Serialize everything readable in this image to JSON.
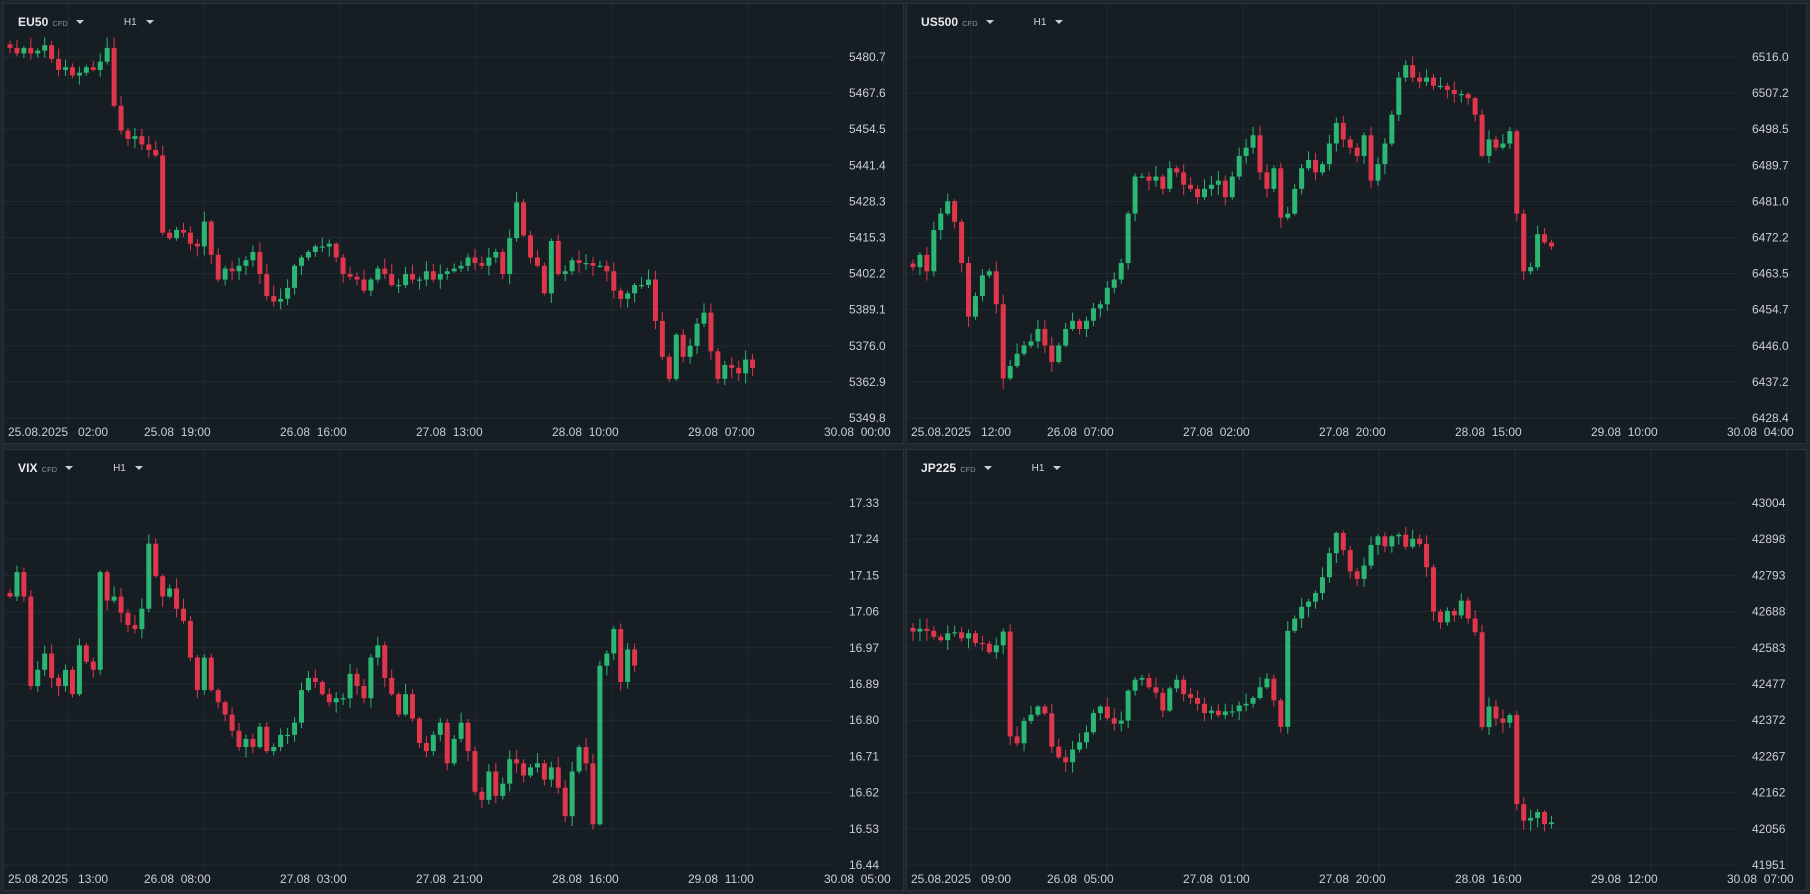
{
  "colors": {
    "up": "#2bb673",
    "down": "#e0364c",
    "grid": "#222b33",
    "bg": "#161d23"
  },
  "ui": {
    "timeframe_caret_icon": "chevron-down-icon",
    "symbol_caret_icon": "chevron-down-icon"
  },
  "chart_data": [
    {
      "type": "candlestick",
      "symbol": "EU50",
      "instrument_type": "CFD",
      "timeframe": "H1",
      "y_labels": [
        "5480.7",
        "5467.6",
        "5454.5",
        "5441.4",
        "5428.3",
        "5415.3",
        "5402.2",
        "5389.1",
        "5376.0",
        "5362.9",
        "5349.8"
      ],
      "ylim": [
        5349.8,
        5480.7
      ],
      "x_labels": [
        "25.08.2025   02:00",
        "25.08  19:00",
        "26.08  16:00",
        "27.08  13:00",
        "28.08  10:00",
        "29.08  07:00",
        "30.08  00:00"
      ],
      "closes": [
        5484,
        5482,
        5484,
        5482,
        5483,
        5485,
        5480,
        5476,
        5477,
        5474,
        5475,
        5477,
        5476,
        5479,
        5484,
        5463,
        5454,
        5451,
        5452,
        5449,
        5447,
        5445,
        5417,
        5415,
        5418,
        5417,
        5413,
        5412,
        5421,
        5409,
        5400,
        5404,
        5403,
        5405,
        5407,
        5410,
        5402,
        5394,
        5392,
        5393,
        5397,
        5405,
        5408,
        5410,
        5412,
        5412,
        5413,
        5408,
        5402,
        5401,
        5400,
        5396,
        5400,
        5404,
        5402,
        5398,
        5398,
        5402,
        5400,
        5400,
        5403,
        5400,
        5402,
        5403,
        5404,
        5405,
        5408,
        5406,
        5405,
        5408,
        5410,
        5402,
        5415,
        5428,
        5416,
        5408,
        5405,
        5395,
        5414,
        5402,
        5403,
        5407,
        5406,
        5406,
        5405,
        5405,
        5403,
        5396,
        5393,
        5395,
        5398,
        5398,
        5400,
        5385,
        5372,
        5364,
        5380,
        5372,
        5376,
        5384,
        5388,
        5374,
        5364,
        5369,
        5368,
        5366,
        5371,
        5368
      ]
    },
    {
      "type": "candlestick",
      "symbol": "US500",
      "instrument_type": "CFD",
      "timeframe": "H1",
      "y_labels": [
        "6516.0",
        "6507.2",
        "6498.5",
        "6489.7",
        "6481.0",
        "6472.2",
        "6463.5",
        "6454.7",
        "6446.0",
        "6437.2",
        "6428.4"
      ],
      "ylim": [
        6428.4,
        6516.0
      ],
      "x_labels": [
        "25.08.2025   12:00",
        "26.08  07:00",
        "27.08  02:00",
        "27.08  20:00",
        "28.08  15:00",
        "29.08  10:00",
        "30.08  04:00"
      ],
      "closes": [
        6465,
        6468,
        6464,
        6474,
        6478,
        6481,
        6476,
        6466,
        6453,
        6458,
        6463,
        6464,
        6456,
        6438,
        6441,
        6444,
        6446,
        6447,
        6450,
        6446,
        6442,
        6446,
        6450,
        6452,
        6450,
        6452,
        6455,
        6456,
        6460,
        6462,
        6466,
        6478,
        6487,
        6487,
        6486,
        6487,
        6484,
        6489,
        6488,
        6485,
        6484,
        6482,
        6484,
        6485,
        6486,
        6482,
        6487,
        6492,
        6494,
        6497,
        6488,
        6484,
        6489,
        6477,
        6478,
        6484,
        6489,
        6491,
        6488,
        6490,
        6495,
        6500,
        6496,
        6494,
        6492,
        6497,
        6486,
        6490,
        6495,
        6502,
        6511,
        6514,
        6511,
        6510,
        6511,
        6509,
        6509,
        6508,
        6507,
        6507,
        6506,
        6502,
        6492,
        6496,
        6494,
        6495,
        6498,
        6478,
        6464,
        6465,
        6473,
        6471,
        6470
      ]
    },
    {
      "type": "candlestick",
      "symbol": "VIX",
      "instrument_type": "CFD",
      "timeframe": "H1",
      "y_labels": [
        "17.33",
        "17.24",
        "17.15",
        "17.06",
        "16.97",
        "16.89",
        "16.80",
        "16.71",
        "16.62",
        "16.53",
        "16.44"
      ],
      "ylim": [
        16.44,
        17.33
      ],
      "x_labels": [
        "25.08.2025   13:00",
        "26.08  08:00",
        "27.08  03:00",
        "27.08  21:00",
        "28.08  16:00",
        "29.08  11:00",
        "30.08  05:00"
      ],
      "closes": [
        17.1,
        17.16,
        17.1,
        16.88,
        16.92,
        16.96,
        16.9,
        16.88,
        16.92,
        16.86,
        16.98,
        16.94,
        16.92,
        17.16,
        17.09,
        17.1,
        17.06,
        17.03,
        17.02,
        17.07,
        17.23,
        17.15,
        17.1,
        17.12,
        17.07,
        17.04,
        16.95,
        16.87,
        16.95,
        16.87,
        16.84,
        16.81,
        16.77,
        16.73,
        16.75,
        16.73,
        16.78,
        16.72,
        16.73,
        16.76,
        16.76,
        16.79,
        16.87,
        16.9,
        16.89,
        16.86,
        16.84,
        16.85,
        16.85,
        16.91,
        16.88,
        16.85,
        16.95,
        16.98,
        16.9,
        16.86,
        16.81,
        16.86,
        16.8,
        16.74,
        16.72,
        16.76,
        16.79,
        16.69,
        16.75,
        16.79,
        16.72,
        16.62,
        16.6,
        16.67,
        16.61,
        16.64,
        16.7,
        16.69,
        16.66,
        16.68,
        16.69,
        16.65,
        16.68,
        16.63,
        16.56,
        16.67,
        16.73,
        16.69,
        16.54,
        16.93,
        16.96,
        17.02,
        16.89,
        16.97,
        16.93
      ]
    },
    {
      "type": "candlestick",
      "symbol": "JP225",
      "instrument_type": "CFD",
      "timeframe": "H1",
      "y_labels": [
        "43004",
        "42898",
        "42793",
        "42688",
        "42583",
        "42477",
        "42372",
        "42267",
        "42162",
        "42056",
        "41951"
      ],
      "ylim": [
        41951,
        43004
      ],
      "x_labels": [
        "25.08.2025   09:00",
        "26.08  05:00",
        "27.08  01:00",
        "27.08  20:00",
        "28.08  16:00",
        "29.08  12:00",
        "30.08  07:00"
      ],
      "closes": [
        42630,
        42638,
        42632,
        42615,
        42605,
        42625,
        42628,
        42610,
        42625,
        42597,
        42595,
        42570,
        42590,
        42630,
        42325,
        42305,
        42370,
        42388,
        42412,
        42392,
        42295,
        42264,
        42250,
        42287,
        42308,
        42337,
        42393,
        42412,
        42378,
        42362,
        42371,
        42458,
        42490,
        42495,
        42468,
        42452,
        42400,
        42465,
        42490,
        42448,
        42437,
        42420,
        42393,
        42400,
        42387,
        42398,
        42398,
        42415,
        42420,
        42437,
        42468,
        42493,
        42430,
        42353,
        42632,
        42668,
        42702,
        42717,
        42742,
        42788,
        42858,
        42917,
        42867,
        42805,
        42783,
        42822,
        42882,
        42907,
        42878,
        42907,
        42912,
        42877,
        42900,
        42885,
        42817,
        42688,
        42657,
        42690,
        42677,
        42720,
        42668,
        42628,
        42352,
        42412,
        42377,
        42365,
        42387,
        42128,
        42080,
        42088,
        42105,
        42070,
        42075
      ]
    }
  ]
}
